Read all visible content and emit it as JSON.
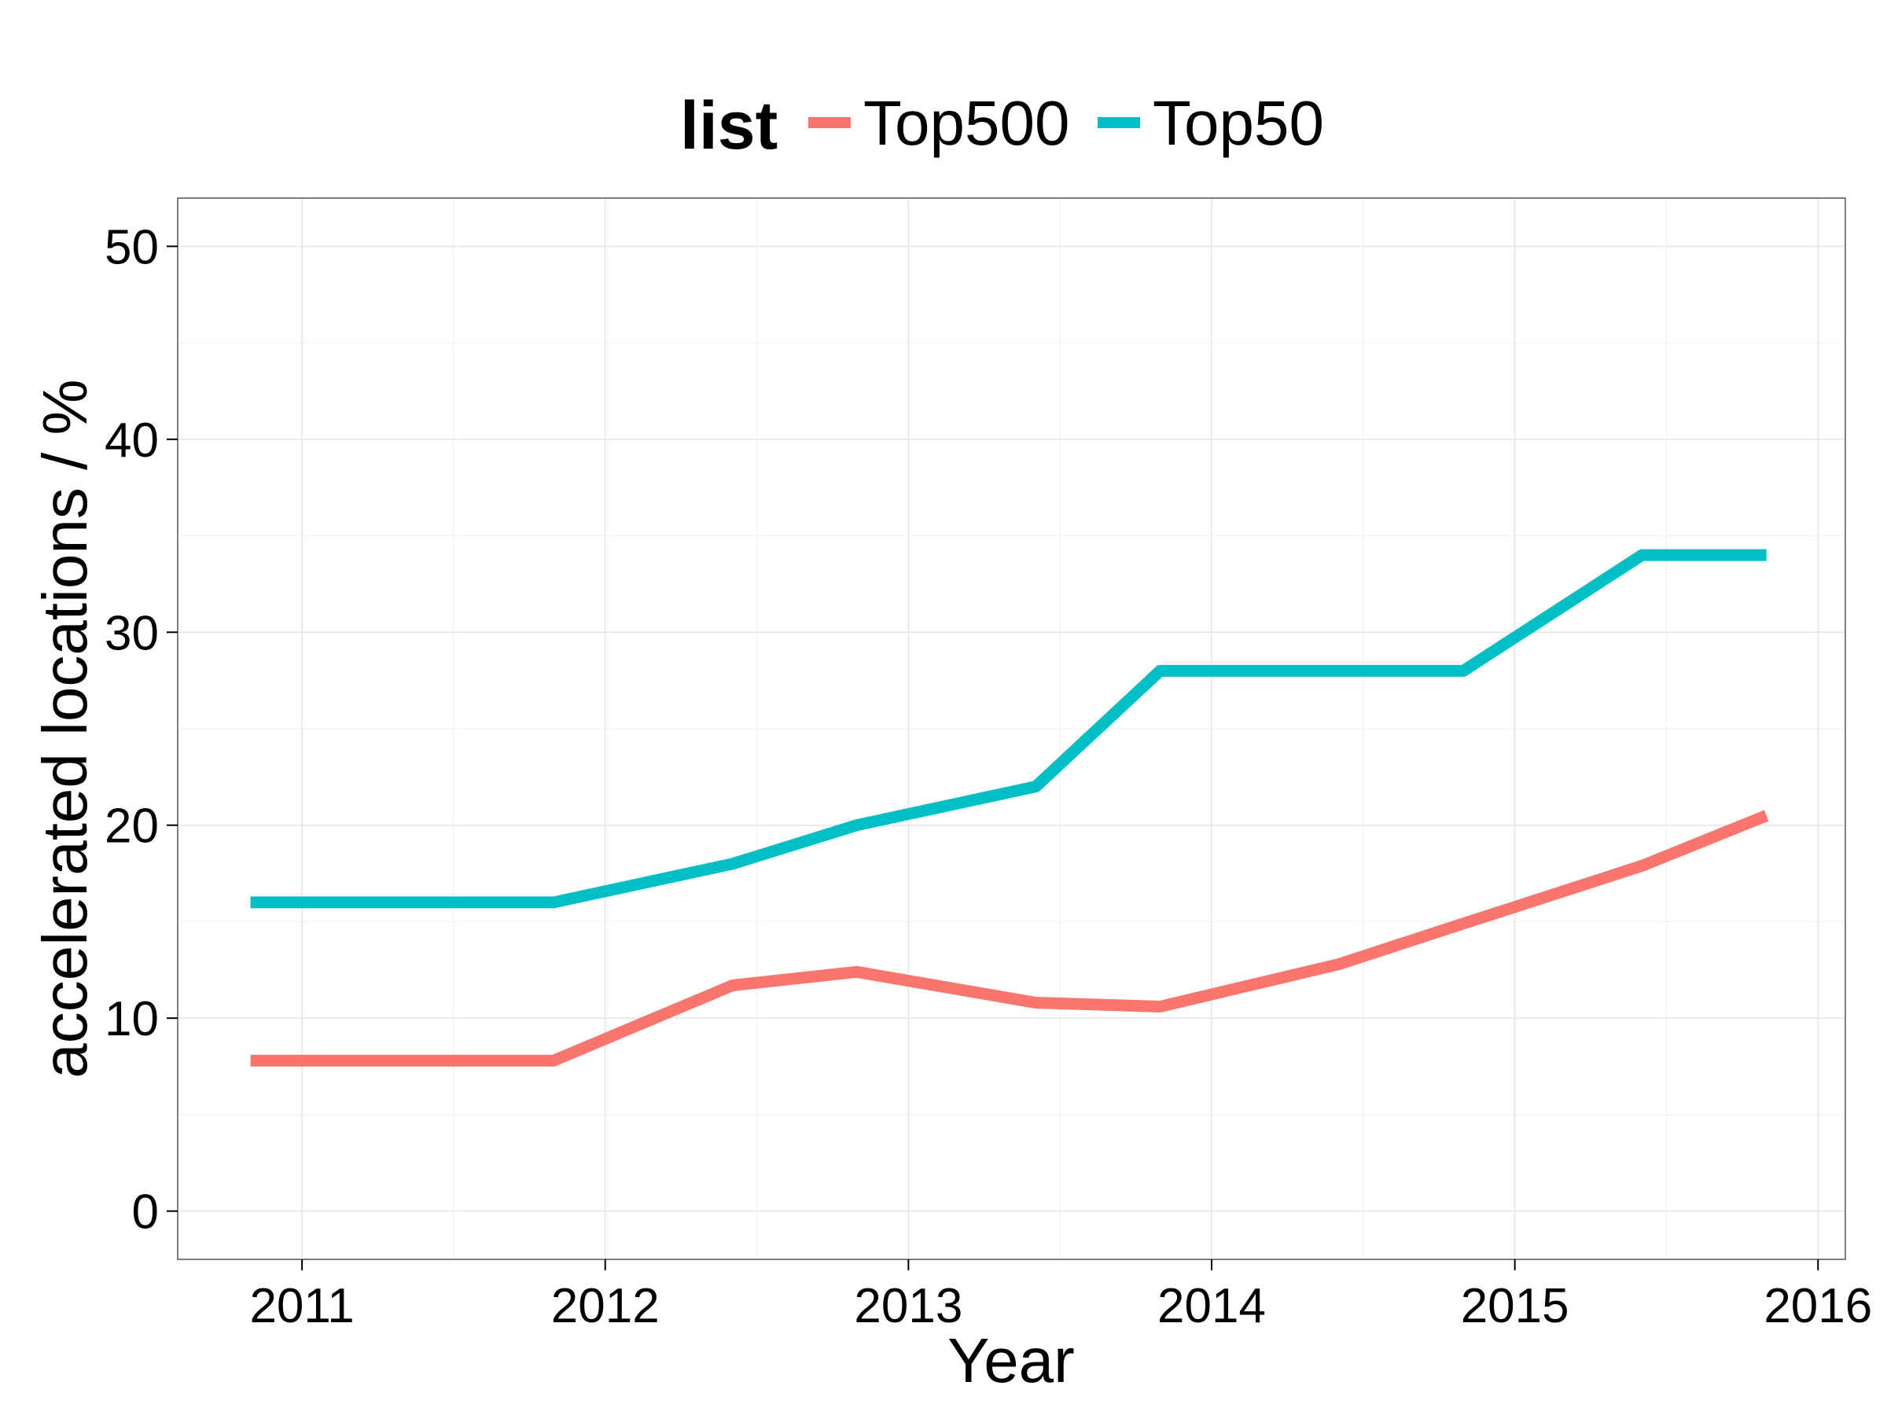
{
  "chart_data": {
    "type": "line",
    "xlabel": "Year",
    "ylabel": "accelerated locations / %",
    "xlim": [
      2010.59,
      2016.09
    ],
    "ylim": [
      -2.5,
      52.5
    ],
    "x_ticks": [
      2011,
      2012,
      2013,
      2014,
      2015,
      2016
    ],
    "x_tick_labels": [
      "2011",
      "2012",
      "2013",
      "2014",
      "2015",
      "2016"
    ],
    "y_ticks": [
      0,
      10,
      20,
      30,
      40,
      50
    ],
    "y_tick_labels": [
      "0",
      "10",
      "20",
      "30",
      "40",
      "50"
    ],
    "grid": true,
    "legend": {
      "title": "list",
      "position": "top"
    },
    "x": [
      2010.83,
      2011.83,
      2012.42,
      2012.83,
      2013.42,
      2013.83,
      2014.42,
      2014.83,
      2015.42,
      2015.83
    ],
    "series": [
      {
        "name": "Top500",
        "color": "#F8766D",
        "values": [
          7.8,
          7.8,
          11.7,
          12.4,
          10.8,
          10.6,
          12.8,
          14.9,
          17.9,
          20.5
        ]
      },
      {
        "name": "Top50",
        "color": "#00BFC4",
        "values": [
          16,
          16,
          18,
          20,
          22,
          28,
          28,
          28,
          34,
          34
        ]
      }
    ]
  }
}
